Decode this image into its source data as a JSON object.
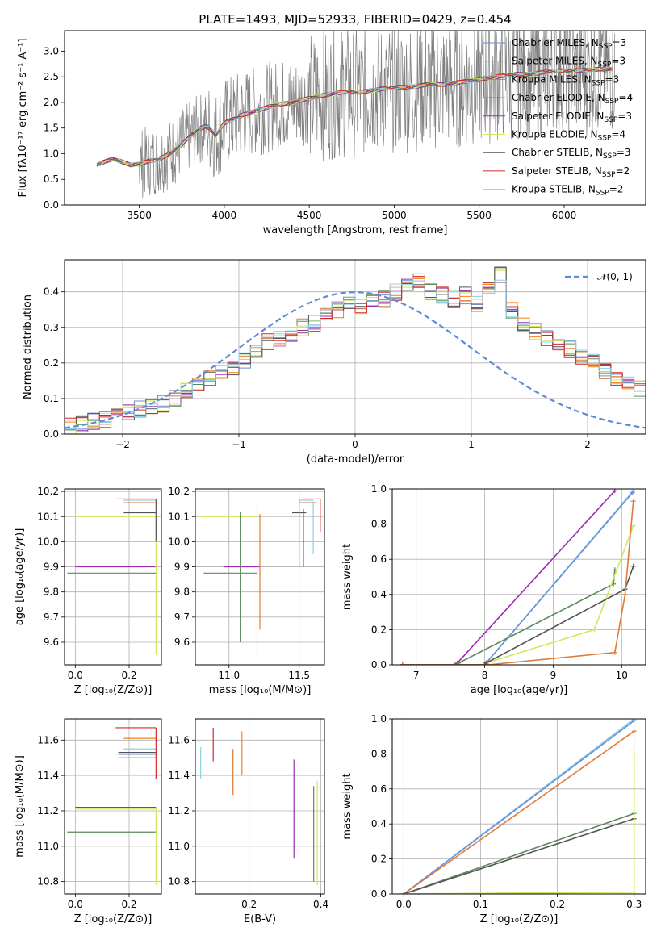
{
  "figure_title": "PLATE=1493, MJD=52933, FIBERID=0429, z=0.454",
  "colors": {
    "chabrier_miles": "#6a8fd8",
    "salpeter_miles": "#ff7f0e",
    "kroupa_miles": "#e07b39",
    "chabrier_elodie": "#5c8a5c",
    "salpeter_elodie": "#9b2bb0",
    "kroupa_elodie": "#cfe85a",
    "chabrier_stelib": "#555555",
    "salpeter_stelib": "#d62728",
    "kroupa_stelib": "#88d0e8",
    "data": "#808080",
    "gauss": "#5b8bd9",
    "grid": "#b0b0b0"
  },
  "chart_data": [
    {
      "type": "line",
      "title": "PLATE=1493, MJD=52933, FIBERID=0429, z=0.454",
      "xlabel": "wavelength [Angstrom, rest frame]",
      "ylabel": "Flux [fλ10⁻¹⁷ erg cm⁻² s⁻¹ A⁻¹]",
      "xlim": [
        3060,
        6480
      ],
      "ylim": [
        0,
        3.4
      ],
      "xticks": [
        3500,
        4000,
        4500,
        5000,
        5500,
        6000
      ],
      "yticks": [
        0.0,
        0.5,
        1.0,
        1.5,
        2.0,
        2.5,
        3.0
      ],
      "grid": false,
      "legend_position": "top-right",
      "continuum": {
        "x": [
          3250,
          3300,
          3350,
          3400,
          3450,
          3500,
          3550,
          3600,
          3650,
          3700,
          3750,
          3800,
          3850,
          3900,
          3950,
          4000,
          4100,
          4200,
          4300,
          4400,
          4500,
          4600,
          4700,
          4800,
          4900,
          5000,
          5100,
          5200,
          5300,
          5400,
          5500,
          5600,
          5700,
          5800,
          5900,
          6000,
          6100,
          6200,
          6300
        ],
        "y": [
          0.78,
          0.85,
          0.9,
          0.84,
          0.78,
          0.8,
          0.85,
          0.88,
          0.95,
          1.05,
          1.18,
          1.35,
          1.48,
          1.55,
          1.35,
          1.6,
          1.75,
          1.85,
          1.95,
          2.0,
          2.08,
          2.15,
          2.2,
          2.2,
          2.25,
          2.3,
          2.3,
          2.35,
          2.35,
          2.4,
          2.45,
          2.5,
          2.55,
          2.55,
          2.6,
          2.62,
          2.62,
          2.65,
          2.65
        ]
      },
      "series": [
        {
          "name": "Chabrier MILES, N_SSP=3",
          "label_main": "Chabrier MILES, N",
          "label_sub": "SSP",
          "label_tail": "=3",
          "color_key": "chabrier_miles"
        },
        {
          "name": "Salpeter MILES, N_SSP=3",
          "label_main": "Salpeter MILES, N",
          "label_sub": "SSP",
          "label_tail": "=3",
          "color_key": "salpeter_miles"
        },
        {
          "name": "Kroupa MILES, N_SSP=3",
          "label_main": "Kroupa MILES, N",
          "label_sub": "SSP",
          "label_tail": "=3",
          "color_key": "kroupa_miles"
        },
        {
          "name": "Chabrier ELODIE, N_SSP=4",
          "label_main": "Chabrier ELODIE, N",
          "label_sub": "SSP",
          "label_tail": "=4",
          "color_key": "chabrier_elodie"
        },
        {
          "name": "Salpeter ELODIE, N_SSP=3",
          "label_main": "Salpeter ELODIE, N",
          "label_sub": "SSP",
          "label_tail": "=3",
          "color_key": "salpeter_elodie"
        },
        {
          "name": "Kroupa ELODIE, N_SSP=4",
          "label_main": "Kroupa ELODIE, N",
          "label_sub": "SSP",
          "label_tail": "=4",
          "color_key": "kroupa_elodie"
        },
        {
          "name": "Chabrier STELIB, N_SSP=3",
          "label_main": "Chabrier STELIB, N",
          "label_sub": "SSP",
          "label_tail": "=3",
          "color_key": "chabrier_stelib"
        },
        {
          "name": "Salpeter STELIB, N_SSP=2",
          "label_main": "Salpeter STELIB, N",
          "label_sub": "SSP",
          "label_tail": "=2",
          "color_key": "salpeter_stelib"
        },
        {
          "name": "Kroupa STELIB, N_SSP=2",
          "label_main": "Kroupa STELIB, N",
          "label_sub": "SSP",
          "label_tail": "=2",
          "color_key": "kroupa_stelib"
        }
      ]
    },
    {
      "type": "histogram",
      "xlabel": "(data-model)/error",
      "ylabel": "Normed distribution",
      "xlim": [
        -2.5,
        2.5
      ],
      "ylim": [
        0,
        0.49
      ],
      "xticks": [
        -2,
        -1,
        0,
        1,
        2
      ],
      "xtick_labels": [
        "−2",
        "−1",
        "0",
        "1",
        "2"
      ],
      "yticks": [
        0.0,
        0.1,
        0.2,
        0.3,
        0.4
      ],
      "grid": true,
      "legend": "𝒩(0, 1)",
      "legend_position": "top-right",
      "bin_width": 0.1,
      "bin_start": -2.5,
      "approx_bin_heights": [
        0.02,
        0.03,
        0.035,
        0.04,
        0.05,
        0.06,
        0.07,
        0.075,
        0.085,
        0.1,
        0.12,
        0.135,
        0.155,
        0.17,
        0.19,
        0.21,
        0.23,
        0.26,
        0.27,
        0.28,
        0.3,
        0.31,
        0.33,
        0.35,
        0.37,
        0.36,
        0.37,
        0.38,
        0.4,
        0.42,
        0.43,
        0.4,
        0.39,
        0.38,
        0.39,
        0.37,
        0.42,
        0.45,
        0.35,
        0.31,
        0.29,
        0.27,
        0.26,
        0.24,
        0.22,
        0.2,
        0.18,
        0.16,
        0.14,
        0.13
      ]
    },
    {
      "type": "scatter",
      "xlabel": "Z [log₁₀(Z/Z⊙)]",
      "ylabel": "age  [log₁₀(age/yr)]",
      "xlim": [
        -0.04,
        0.32
      ],
      "ylim": [
        9.51,
        10.21
      ],
      "xticks": [
        0.0,
        0.2
      ],
      "yticks": [
        9.6,
        9.7,
        9.8,
        9.9,
        10.0,
        10.1,
        10.2
      ],
      "grid": true,
      "hbars": [
        {
          "y": 10.17,
          "x0": 0.15,
          "x1": 0.3,
          "color_key": "salpeter_stelib"
        },
        {
          "y": 10.165,
          "x0": 0.18,
          "x1": 0.3,
          "color_key": "kroupa_stelib"
        },
        {
          "y": 10.155,
          "x0": 0.18,
          "x1": 0.3,
          "color_key": "kroupa_miles"
        },
        {
          "y": 10.115,
          "x0": 0.18,
          "x1": 0.3,
          "color_key": "chabrier_stelib"
        },
        {
          "y": 10.1,
          "x0": 0.0,
          "x1": 0.3,
          "color_key": "kroupa_elodie"
        },
        {
          "y": 9.9,
          "x0": 0.0,
          "x1": 0.3,
          "color_key": "salpeter_elodie"
        },
        {
          "y": 9.875,
          "x0": -0.03,
          "x1": 0.3,
          "color_key": "chabrier_elodie"
        }
      ],
      "vbars": [
        {
          "x": 0.3,
          "y0": 9.55,
          "y1": 10.1,
          "color_key": "kroupa_elodie"
        },
        {
          "x": 0.3,
          "y0": 10.0,
          "y1": 10.17,
          "color_key": "chabrier_stelib"
        }
      ]
    },
    {
      "type": "scatter",
      "xlabel": "mass [log₁₀(M/M⊙)]",
      "xlim": [
        10.76,
        11.68
      ],
      "ylim": [
        9.51,
        10.21
      ],
      "xticks": [
        11.0,
        11.5
      ],
      "yticks": [
        9.6,
        9.7,
        9.8,
        9.9,
        10.0,
        10.1,
        10.2
      ],
      "grid": true,
      "hbars": [
        {
          "y": 10.17,
          "x0": 11.52,
          "x1": 11.65,
          "color_key": "salpeter_stelib"
        },
        {
          "y": 10.165,
          "x0": 11.5,
          "x1": 11.6,
          "color_key": "kroupa_stelib"
        },
        {
          "y": 10.155,
          "x0": 11.5,
          "x1": 11.62,
          "color_key": "kroupa_miles"
        },
        {
          "y": 10.115,
          "x0": 11.45,
          "x1": 11.55,
          "color_key": "chabrier_stelib"
        },
        {
          "y": 10.1,
          "x0": 10.78,
          "x1": 11.2,
          "color_key": "kroupa_elodie"
        },
        {
          "y": 9.9,
          "x0": 10.96,
          "x1": 11.22,
          "color_key": "salpeter_elodie"
        },
        {
          "y": 9.875,
          "x0": 10.82,
          "x1": 11.2,
          "color_key": "chabrier_elodie"
        }
      ],
      "vbars": [
        {
          "x": 11.08,
          "y0": 9.6,
          "y1": 10.12,
          "color_key": "chabrier_elodie"
        },
        {
          "x": 11.2,
          "y0": 9.55,
          "y1": 10.15,
          "color_key": "kroupa_elodie"
        },
        {
          "x": 11.22,
          "y0": 9.65,
          "y1": 10.11,
          "color_key": "kroupa_miles"
        },
        {
          "x": 11.5,
          "y0": 9.9,
          "y1": 10.17,
          "color_key": "kroupa_miles"
        },
        {
          "x": 11.53,
          "y0": 9.9,
          "y1": 10.13,
          "color_key": "chabrier_stelib"
        },
        {
          "x": 11.6,
          "y0": 9.95,
          "y1": 10.16,
          "color_key": "kroupa_stelib"
        },
        {
          "x": 11.65,
          "y0": 10.04,
          "y1": 10.17,
          "color_key": "salpeter_stelib"
        }
      ]
    },
    {
      "type": "line",
      "xlabel": "age  [log₁₀(age/yr)]",
      "ylabel": "mass weight",
      "xlim": [
        6.65,
        10.35
      ],
      "ylim": [
        0,
        1
      ],
      "xticks": [
        7,
        8,
        9,
        10
      ],
      "yticks": [
        0.0,
        0.2,
        0.4,
        0.6,
        0.8,
        1.0
      ],
      "grid": true,
      "series": [
        {
          "name": "Salpeter ELODIE",
          "color_key": "salpeter_elodie",
          "x": [
            6.8,
            7.55,
            7.6,
            9.9
          ],
          "y": [
            0.0,
            0.0,
            0.01,
            0.99
          ]
        },
        {
          "name": "Kroupa STELIB",
          "color_key": "kroupa_stelib",
          "x": [
            6.8,
            8.0,
            8.02,
            10.17
          ],
          "y": [
            0.0,
            0.0,
            0.01,
            0.99
          ]
        },
        {
          "name": "Chabrier MILES",
          "color_key": "chabrier_miles",
          "x": [
            6.8,
            8.0,
            8.02,
            10.16
          ],
          "y": [
            0.0,
            0.0,
            0.01,
            0.98
          ]
        },
        {
          "name": "Chabrier ELODIE",
          "color_key": "chabrier_elodie",
          "x": [
            6.8,
            7.6,
            7.62,
            9.88,
            9.9
          ],
          "y": [
            0.0,
            0.0,
            0.01,
            0.46,
            0.54
          ]
        },
        {
          "name": "Kroupa ELODIE",
          "color_key": "kroupa_elodie",
          "x": [
            6.8,
            8.0,
            8.02,
            9.6,
            10.17
          ],
          "y": [
            0.0,
            0.0,
            0.01,
            0.2,
            0.79
          ]
        },
        {
          "name": "Chabrier STELIB",
          "color_key": "chabrier_stelib",
          "x": [
            6.8,
            8.0,
            8.02,
            10.05,
            10.17
          ],
          "y": [
            0.0,
            0.0,
            0.01,
            0.43,
            0.56
          ]
        },
        {
          "name": "Kroupa MILES",
          "color_key": "kroupa_miles",
          "x": [
            6.8,
            8.05,
            9.9,
            10.05,
            10.17
          ],
          "y": [
            0.0,
            0.0,
            0.07,
            0.4,
            0.93
          ]
        }
      ]
    },
    {
      "type": "scatter",
      "xlabel": "Z [log₁₀(Z/Z⊙)]",
      "ylabel": "mass [log₁₀(M/M⊙)]",
      "xlim": [
        -0.04,
        0.32
      ],
      "ylim": [
        10.73,
        11.72
      ],
      "xticks": [
        0.0,
        0.2
      ],
      "yticks": [
        10.8,
        11.0,
        11.2,
        11.4,
        11.6
      ],
      "grid": true,
      "hbars": [
        {
          "y": 11.67,
          "x0": 0.15,
          "x1": 0.3,
          "color_key": "salpeter_stelib"
        },
        {
          "y": 11.61,
          "x0": 0.18,
          "x1": 0.3,
          "color_key": "salpeter_miles"
        },
        {
          "y": 11.55,
          "x0": 0.18,
          "x1": 0.3,
          "color_key": "kroupa_stelib"
        },
        {
          "y": 11.53,
          "x0": 0.16,
          "x1": 0.3,
          "color_key": "chabrier_stelib"
        },
        {
          "y": 11.52,
          "x0": 0.16,
          "x1": 0.3,
          "color_key": "chabrier_miles"
        },
        {
          "y": 11.5,
          "x0": 0.16,
          "x1": 0.3,
          "color_key": "kroupa_miles"
        },
        {
          "y": 11.22,
          "x0": 0.0,
          "x1": 0.3,
          "color_key": "salpeter_stelib"
        },
        {
          "y": 11.21,
          "x0": 0.0,
          "x1": 0.3,
          "color_key": "kroupa_elodie"
        },
        {
          "y": 11.08,
          "x0": -0.03,
          "x1": 0.3,
          "color_key": "chabrier_elodie"
        }
      ],
      "vbars": [
        {
          "x": 0.3,
          "y0": 10.78,
          "y1": 11.22,
          "color_key": "kroupa_elodie"
        },
        {
          "x": 0.3,
          "y0": 11.38,
          "y1": 11.67,
          "color_key": "salpeter_stelib"
        }
      ]
    },
    {
      "type": "scatter",
      "xlabel": "E(B-V)",
      "xlim": [
        0.05,
        0.41
      ],
      "ylim": [
        10.73,
        11.72
      ],
      "xticks": [
        0.2,
        0.4
      ],
      "yticks": [
        10.8,
        11.0,
        11.2,
        11.4,
        11.6
      ],
      "grid": true,
      "vbars": [
        {
          "x": 0.065,
          "y0": 11.38,
          "y1": 11.56,
          "color_key": "kroupa_stelib"
        },
        {
          "x": 0.1,
          "y0": 11.48,
          "y1": 11.67,
          "color_key": "salpeter_stelib"
        },
        {
          "x": 0.155,
          "y0": 11.29,
          "y1": 11.55,
          "color_key": "kroupa_miles"
        },
        {
          "x": 0.18,
          "y0": 11.4,
          "y1": 11.65,
          "color_key": "salpeter_miles"
        },
        {
          "x": 0.325,
          "y0": 10.93,
          "y1": 11.49,
          "color_key": "salpeter_elodie"
        },
        {
          "x": 0.38,
          "y0": 10.8,
          "y1": 11.34,
          "color_key": "chabrier_elodie"
        },
        {
          "x": 0.39,
          "y0": 10.78,
          "y1": 11.37,
          "color_key": "kroupa_elodie"
        }
      ]
    },
    {
      "type": "line",
      "xlabel": "Z [log₁₀(Z/Z⊙)]",
      "ylabel": "mass weight",
      "xlim": [
        -0.015,
        0.315
      ],
      "ylim": [
        0,
        1
      ],
      "xticks": [
        0.0,
        0.1,
        0.2,
        0.3
      ],
      "yticks": [
        0.0,
        0.2,
        0.4,
        0.6,
        0.8,
        1.0
      ],
      "grid": true,
      "series": [
        {
          "name": "Kroupa STELIB",
          "color_key": "kroupa_stelib",
          "x": [
            0.0,
            0.3
          ],
          "y": [
            0.0,
            1.0
          ]
        },
        {
          "name": "Chabrier MILES",
          "color_key": "chabrier_miles",
          "x": [
            0.0,
            0.3
          ],
          "y": [
            0.0,
            0.99
          ]
        },
        {
          "name": "Kroupa MILES",
          "color_key": "kroupa_miles",
          "x": [
            0.0,
            0.3
          ],
          "y": [
            0.0,
            0.93
          ]
        },
        {
          "name": "Chabrier ELODIE",
          "color_key": "chabrier_elodie",
          "x": [
            0.0,
            0.3
          ],
          "y": [
            0.0,
            0.46
          ]
        },
        {
          "name": "Chabrier STELIB",
          "color_key": "chabrier_stelib",
          "x": [
            0.0,
            0.3
          ],
          "y": [
            0.0,
            0.43
          ]
        },
        {
          "name": "Kroupa ELODIE",
          "color_key": "kroupa_elodie",
          "x": [
            0.0,
            0.3,
            0.3
          ],
          "y": [
            0.0,
            0.01,
            0.8
          ]
        }
      ]
    }
  ]
}
